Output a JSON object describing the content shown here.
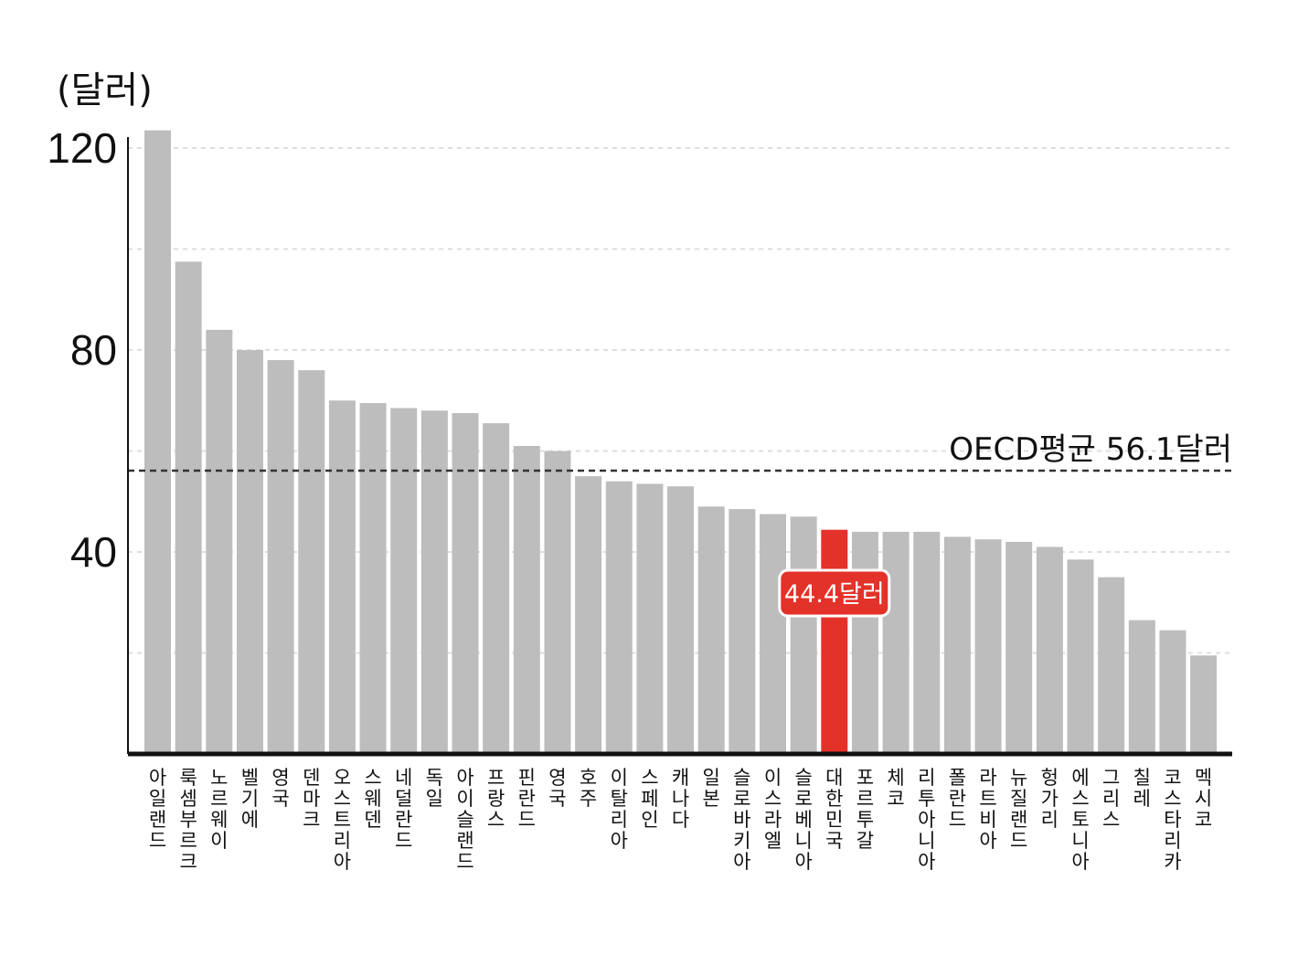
{
  "chart_data": {
    "type": "bar",
    "unit_label": "(달러)",
    "ylim": [
      0,
      120
    ],
    "yticks": [
      "40",
      "80",
      "120"
    ],
    "grid": true,
    "categories": [
      "아일랜드",
      "룩셈부르크",
      "노르웨이",
      "벨기에",
      "영국",
      "덴마크",
      "오스트리아",
      "스웨덴",
      "네덜란드",
      "독일",
      "아이슬랜드",
      "프랑스",
      "핀란드",
      "영국",
      "호주",
      "이탈리아",
      "스페인",
      "캐나다",
      "일본",
      "슬로바키아",
      "이스라엘",
      "슬로베니아",
      "대한민국",
      "포르투갈",
      "체코",
      "리투아니아",
      "폴란드",
      "라트비아",
      "뉴질랜드",
      "헝가리",
      "에스토니아",
      "그리스",
      "칠레",
      "코스타리카",
      "멕시코"
    ],
    "values": [
      123.5,
      97.5,
      84,
      80,
      78,
      76,
      70,
      69.5,
      68.5,
      68,
      67.5,
      65.5,
      61,
      60,
      55,
      54,
      53.5,
      53,
      49,
      48.5,
      47.5,
      47,
      44.4,
      44,
      44,
      44,
      43,
      42.5,
      42,
      41,
      38.5,
      35,
      26.5,
      24.5,
      19.5
    ],
    "highlight_index": 22,
    "highlight_label": "44.4달러",
    "average": {
      "value": 56.1,
      "label": "OECD평균  56.1달러"
    },
    "colors": {
      "bar": "#bdbdbd",
      "highlight": "#e33229",
      "axis": "#111111",
      "grid": "#dedede"
    }
  }
}
